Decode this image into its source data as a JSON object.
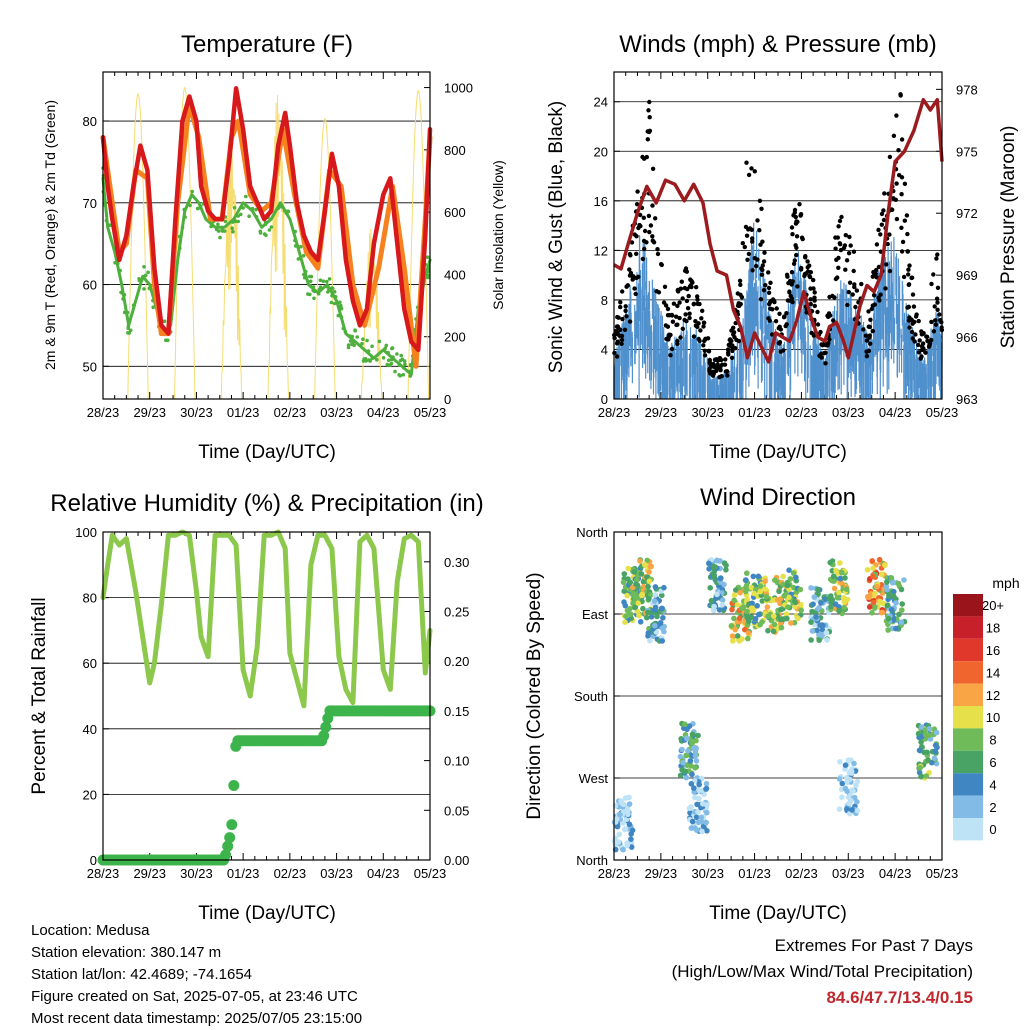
{
  "info": {
    "location": "Location: Medusa",
    "elevation": "Station elevation: 380.147 m",
    "latlon": "Station lat/lon: 42.4689; -74.1654",
    "created": "Figure created on Sat, 2025-07-05, at 23:46 UTC",
    "recent": "Most recent data timestamp: 2025/07/05 23:15:00"
  },
  "extremes": {
    "heading": "Extremes For Past 7 Days",
    "subheading": "(High/Low/Max Wind/Total Precipitation)",
    "values": "84.6/47.7/13.4/0.15"
  },
  "colors": {
    "temp_2m": "#d7191c",
    "temp_9m": "#f5821f",
    "dewpoint": "#4daf3c",
    "solar": "#f7dc6f",
    "wind": "#4f90cd",
    "gust": "#000000",
    "pressure": "#9b1b1e",
    "rh": "#8cc84b",
    "rain": "#3cb44b"
  },
  "chart_data": [
    {
      "type": "line",
      "title": "Temperature (F)",
      "xlabel": "Time (Day/UTC)",
      "ylabel": "2m & 9m T (Red, Orange) & 2m Td (Green)",
      "ylabel_right": "Solar Insolation (Yellow)",
      "xticks": [
        "28/23",
        "29/23",
        "30/23",
        "01/23",
        "02/23",
        "03/23",
        "04/23",
        "05/23"
      ],
      "xlim": [
        0,
        7
      ],
      "ylim": [
        46,
        86
      ],
      "yticks": [
        50,
        60,
        70,
        80
      ],
      "ylim_right": [
        0,
        1050
      ],
      "yticks_right": [
        0,
        200,
        400,
        600,
        800,
        1000
      ],
      "grid": "horizontal",
      "series": [
        {
          "key": "temp_2m",
          "x": [
            0,
            0.1,
            0.2,
            0.35,
            0.5,
            0.65,
            0.8,
            0.95,
            1.1,
            1.25,
            1.4,
            1.55,
            1.7,
            1.85,
            2.0,
            2.1,
            2.25,
            2.4,
            2.55,
            2.7,
            2.85,
            3.0,
            3.15,
            3.3,
            3.45,
            3.6,
            3.75,
            3.9,
            4.0,
            4.15,
            4.3,
            4.45,
            4.6,
            4.75,
            4.9,
            5.05,
            5.2,
            5.35,
            5.5,
            5.65,
            5.8,
            6.0,
            6.15,
            6.3,
            6.45,
            6.6,
            6.75,
            6.9,
            7.0
          ],
          "values": [
            78,
            72,
            68,
            63,
            66,
            72,
            77,
            74,
            62,
            55,
            54,
            68,
            80,
            83,
            80,
            72,
            69,
            68,
            68,
            75,
            84,
            79,
            72,
            70,
            68,
            69,
            77,
            81,
            77,
            70,
            66,
            64,
            63,
            69,
            76,
            72,
            63,
            58,
            55,
            57,
            65,
            71,
            73,
            65,
            57,
            53,
            52,
            66,
            79
          ]
        },
        {
          "key": "temp_9m",
          "x": [
            0,
            0.2,
            0.35,
            0.5,
            0.7,
            0.95,
            1.1,
            1.25,
            1.4,
            1.6,
            1.85,
            2.05,
            2.3,
            2.55,
            2.75,
            2.9,
            3.15,
            3.4,
            3.6,
            3.85,
            4.1,
            4.35,
            4.6,
            4.85,
            5.1,
            5.35,
            5.6,
            5.9,
            6.2,
            6.45,
            6.7,
            6.9,
            7.0
          ],
          "values": [
            78,
            70,
            64,
            65,
            74,
            73,
            60,
            54,
            54,
            70,
            82,
            78,
            68,
            68,
            78,
            80,
            71,
            69,
            70,
            79,
            71,
            64,
            62,
            74,
            72,
            60,
            55,
            62,
            72,
            62,
            50,
            68,
            78
          ]
        },
        {
          "key": "dewpoint",
          "x": [
            0,
            0.1,
            0.25,
            0.4,
            0.55,
            0.7,
            0.85,
            1.0,
            1.15,
            1.3,
            1.45,
            1.6,
            1.75,
            1.9,
            2.05,
            2.2,
            2.4,
            2.6,
            2.8,
            3.0,
            3.2,
            3.4,
            3.6,
            3.8,
            4.0,
            4.2,
            4.4,
            4.6,
            4.8,
            5.0,
            5.2,
            5.4,
            5.6,
            5.8,
            6.0,
            6.2,
            6.4,
            6.6,
            6.75,
            6.9,
            7.0
          ],
          "values": [
            73,
            67,
            64,
            60,
            55,
            58,
            61,
            60,
            57,
            54,
            55,
            63,
            69,
            71,
            70,
            68,
            67,
            67,
            68,
            70,
            69,
            67,
            68,
            70,
            68,
            64,
            60,
            59,
            60,
            58,
            54,
            53,
            52,
            51,
            52,
            51,
            50,
            49,
            57,
            61,
            63
          ]
        },
        {
          "key": "solar",
          "type": "spikes",
          "days": [
            0,
            1,
            2,
            3,
            4,
            5,
            6
          ],
          "peaks": [
            980,
            1000,
            860,
            1000,
            900,
            560,
            990
          ],
          "axis": "right"
        }
      ]
    },
    {
      "type": "scatter",
      "title": "Winds (mph) & Pressure (mb)",
      "xlabel": "Time (Day/UTC)",
      "ylabel": "Sonic Wind & Gust (Blue, Black)",
      "ylabel_right": "Station Pressure (Maroon)",
      "xticks": [
        "28/23",
        "29/23",
        "30/23",
        "01/23",
        "02/23",
        "03/23",
        "04/23",
        "05/23"
      ],
      "xlim": [
        0,
        7
      ],
      "ylim": [
        0,
        26.4
      ],
      "yticks": [
        0,
        4,
        8,
        12,
        16,
        20,
        24
      ],
      "ylim_right": [
        963,
        978.84
      ],
      "yticks_right": [
        963,
        966,
        969,
        972,
        975,
        978
      ],
      "grid": "horizontal",
      "series": [
        {
          "key": "wind",
          "type": "band",
          "x": [
            0,
            0.3,
            0.6,
            0.9,
            1.2,
            1.5,
            1.8,
            2.1,
            2.4,
            2.7,
            3.0,
            3.3,
            3.6,
            3.9,
            4.2,
            4.5,
            4.8,
            5.1,
            5.4,
            5.7,
            6.0,
            6.3,
            6.6,
            6.9,
            7.0
          ],
          "values": [
            3,
            8,
            13,
            8,
            4,
            6,
            5,
            2,
            2,
            5,
            14,
            7,
            4,
            12,
            7,
            3,
            9,
            8,
            5,
            11,
            13,
            6,
            3,
            7,
            5
          ]
        },
        {
          "key": "gust",
          "x": [
            0,
            0.3,
            0.6,
            0.8,
            0.9,
            1.2,
            1.5,
            1.8,
            2.1,
            2.4,
            2.7,
            2.85,
            3.0,
            3.3,
            3.6,
            3.9,
            4.2,
            4.5,
            4.8,
            5.1,
            5.4,
            5.7,
            6.0,
            6.1,
            6.3,
            6.6,
            6.9,
            7.0
          ],
          "values": [
            5,
            10,
            18,
            23,
            15,
            6,
            10,
            8,
            3,
            3,
            9,
            20,
            18,
            10,
            6,
            16,
            10,
            4,
            16,
            12,
            6,
            14,
            20,
            24,
            10,
            5,
            11,
            6
          ]
        },
        {
          "key": "pressure",
          "axis": "right",
          "x": [
            0,
            0.15,
            0.3,
            0.5,
            0.7,
            0.9,
            1.1,
            1.3,
            1.5,
            1.7,
            1.9,
            2.05,
            2.2,
            2.4,
            2.55,
            2.7,
            2.85,
            3.0,
            3.15,
            3.3,
            3.45,
            3.6,
            3.75,
            3.9,
            4.05,
            4.2,
            4.35,
            4.5,
            4.6,
            4.75,
            4.9,
            5.0,
            5.1,
            5.25,
            5.4,
            5.55,
            5.7,
            5.85,
            6.0,
            6.2,
            6.4,
            6.6,
            6.75,
            6.9,
            7.0
          ],
          "values": [
            969.5,
            969.3,
            970.5,
            972,
            973.3,
            972.5,
            973.6,
            973.4,
            972.6,
            973.4,
            972.5,
            970.5,
            969.2,
            969,
            967.3,
            966.5,
            965,
            966.2,
            965.5,
            964.8,
            966.2,
            966,
            965.8,
            966.8,
            968.2,
            967,
            966,
            965.8,
            966.5,
            966.7,
            965.8,
            965,
            966,
            967.5,
            968.5,
            968.2,
            969,
            972,
            974.5,
            975,
            976,
            977.5,
            977,
            977.5,
            974.5
          ]
        }
      ]
    },
    {
      "type": "line",
      "title": "Relative Humidity (%) & Precipitation (in)",
      "xlabel": "Time (Day/UTC)",
      "ylabel": "Percent & Total Rainfall",
      "xticks": [
        "28/23",
        "29/23",
        "30/23",
        "01/23",
        "02/23",
        "03/23",
        "04/23",
        "05/23"
      ],
      "xlim": [
        0,
        7
      ],
      "ylim": [
        0,
        100
      ],
      "yticks": [
        0,
        20,
        40,
        60,
        80,
        100
      ],
      "ylim_right": [
        0,
        0.33
      ],
      "yticks_right": [
        "0.00",
        "0.05",
        "0.10",
        "0.15",
        "0.20",
        "0.25",
        "0.30"
      ],
      "grid": "horizontal",
      "series": [
        {
          "key": "rh",
          "x": [
            0,
            0.1,
            0.2,
            0.35,
            0.5,
            0.7,
            0.85,
            1.0,
            1.1,
            1.25,
            1.4,
            1.55,
            1.7,
            1.85,
            2.0,
            2.1,
            2.25,
            2.4,
            2.55,
            2.7,
            2.85,
            3.0,
            3.15,
            3.3,
            3.45,
            3.6,
            3.75,
            3.9,
            4.0,
            4.15,
            4.3,
            4.45,
            4.6,
            4.75,
            4.9,
            5.05,
            5.2,
            5.35,
            5.5,
            5.65,
            5.8,
            6.0,
            6.15,
            6.3,
            6.45,
            6.6,
            6.75,
            6.9,
            7.0
          ],
          "values": [
            80,
            90,
            99,
            96,
            98,
            82,
            68,
            54,
            60,
            78,
            99,
            99,
            100,
            99,
            82,
            68,
            62,
            99,
            99,
            99,
            96,
            58,
            50,
            65,
            99,
            99,
            100,
            95,
            63,
            55,
            47,
            90,
            99,
            99,
            95,
            62,
            52,
            48,
            97,
            99,
            95,
            58,
            52,
            85,
            98,
            99,
            97,
            57,
            70
          ]
        },
        {
          "key": "rain",
          "axis": "right",
          "x": [
            0,
            1,
            2,
            2.6,
            2.75,
            2.85,
            3.0,
            3.5,
            4.0,
            4.7,
            4.85,
            5.0,
            5.5,
            6.0,
            6.5,
            7.0
          ],
          "values": [
            0.0,
            0.0,
            0.0,
            0.0,
            0.03,
            0.12,
            0.12,
            0.12,
            0.12,
            0.12,
            0.15,
            0.15,
            0.15,
            0.15,
            0.15,
            0.15
          ]
        }
      ]
    },
    {
      "type": "scatter",
      "title": "Wind Direction",
      "xlabel": "Time (Day/UTC)",
      "ylabel": "Direction (Colored By Speed)",
      "xticks": [
        "28/23",
        "29/23",
        "30/23",
        "01/23",
        "02/23",
        "03/23",
        "04/23",
        "05/23"
      ],
      "xlim": [
        0,
        7
      ],
      "ylim": [
        0,
        360
      ],
      "yticks": [
        "North",
        "West",
        "South",
        "East",
        "North"
      ],
      "colorbar_title": "mph",
      "colorbar_labels": [
        "20+",
        "18",
        "16",
        "14",
        "12",
        "10",
        "8",
        "6",
        "4",
        "2",
        "0"
      ],
      "colorbar_colors": [
        "#99141b",
        "#c8202a",
        "#e0382b",
        "#f0652e",
        "#f9a545",
        "#e6e04a",
        "#6fbb5a",
        "#48a364",
        "#3f86c3",
        "#82bbe5",
        "#bfe3f6"
      ],
      "clusters": [
        {
          "day": 0.4,
          "dir": 290,
          "speed": 7
        },
        {
          "day": 0.6,
          "dir": 300,
          "speed": 9
        },
        {
          "day": 0.9,
          "dir": 270,
          "speed": 4
        },
        {
          "day": 1.6,
          "dir": 120,
          "speed": 5
        },
        {
          "day": 1.8,
          "dir": 60,
          "speed": 1
        },
        {
          "day": 2.2,
          "dir": 300,
          "speed": 3
        },
        {
          "day": 2.7,
          "dir": 270,
          "speed": 10
        },
        {
          "day": 3.0,
          "dir": 285,
          "speed": 7
        },
        {
          "day": 3.4,
          "dir": 280,
          "speed": 9
        },
        {
          "day": 3.8,
          "dir": 290,
          "speed": 8
        },
        {
          "day": 4.4,
          "dir": 270,
          "speed": 4
        },
        {
          "day": 4.8,
          "dir": 300,
          "speed": 8
        },
        {
          "day": 5.6,
          "dir": 300,
          "speed": 12
        },
        {
          "day": 6.0,
          "dir": 280,
          "speed": 5
        },
        {
          "day": 6.7,
          "dir": 120,
          "speed": 6
        },
        {
          "day": 5.0,
          "dir": 80,
          "speed": 1
        },
        {
          "day": 0.2,
          "dir": 40,
          "speed": 1
        }
      ]
    }
  ]
}
